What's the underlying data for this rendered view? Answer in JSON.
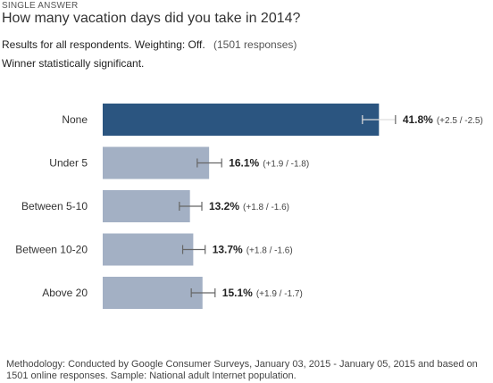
{
  "header": {
    "kicker": "SINGLE ANSWER",
    "question": "How many vacation days did you take in 2014?",
    "results": "Results for all respondents. Weighting: Off.",
    "responses": "(1501 responses)",
    "winner": "Winner statistically significant."
  },
  "chart_data": {
    "type": "bar",
    "orientation": "horizontal",
    "categories": [
      "None",
      "Under 5",
      "Between 5-10",
      "Between 10-20",
      "Above 20"
    ],
    "values": [
      41.8,
      16.1,
      13.2,
      13.7,
      15.1
    ],
    "value_labels": [
      "41.8%",
      "16.1%",
      "13.2%",
      "13.7%",
      "15.1%"
    ],
    "error_plus": [
      2.5,
      1.9,
      1.8,
      1.8,
      1.9
    ],
    "error_minus": [
      2.5,
      1.8,
      1.6,
      1.6,
      1.7
    ],
    "ci_labels": [
      "(+2.5 / -2.5)",
      "(+1.9 / -1.8)",
      "(+1.8 / -1.6)",
      "(+1.8 / -1.6)",
      "(+1.9 / -1.7)"
    ],
    "highlight_index": 0,
    "colors": {
      "winner": "#2b5580",
      "other": "#a3b0c4",
      "error_bar": "#666666"
    }
  },
  "footer": {
    "methodology": "Methodology: Conducted by Google Consumer Surveys, January 03, 2015 - January 05, 2015 and based on 1501 online responses. Sample: National adult Internet population."
  }
}
